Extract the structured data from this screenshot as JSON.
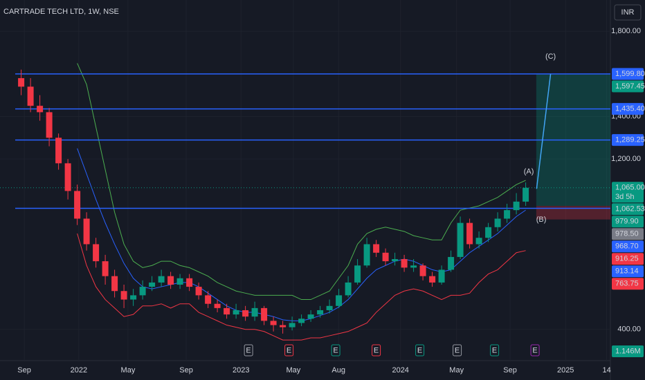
{
  "chart_data": {
    "type": "candlestick",
    "title": "CARTRADE TECH LTD, 1W, NSE",
    "currency": "INR",
    "x": [
      -1,
      2,
      5,
      8,
      11,
      14,
      17,
      20,
      23,
      26,
      29,
      32,
      35,
      38,
      41,
      44,
      47,
      50,
      53,
      56,
      59,
      62,
      65,
      68,
      71,
      74,
      77,
      80,
      83,
      86,
      89,
      92,
      95,
      98,
      101,
      104,
      107,
      110,
      113,
      116,
      119,
      122,
      125,
      128,
      131,
      134,
      137,
      140,
      143,
      146,
      149,
      152,
      155,
      158,
      161
    ],
    "open": [
      1580,
      1540,
      1450,
      1420,
      1300,
      1180,
      1050,
      920,
      800,
      720,
      650,
      580,
      540,
      560,
      600,
      620,
      650,
      610,
      640,
      600,
      560,
      520,
      500,
      470,
      490,
      460,
      500,
      440,
      420,
      410,
      430,
      450,
      470,
      490,
      510,
      560,
      620,
      700,
      800,
      760,
      720,
      730,
      690,
      700,
      650,
      620,
      680,
      740,
      900,
      800,
      830,
      880,
      920,
      960,
      1000
    ],
    "high": [
      1620,
      1580,
      1500,
      1440,
      1320,
      1200,
      1080,
      950,
      830,
      750,
      680,
      610,
      590,
      630,
      650,
      680,
      670,
      660,
      660,
      620,
      580,
      540,
      520,
      520,
      510,
      530,
      510,
      460,
      440,
      460,
      470,
      490,
      510,
      540,
      590,
      650,
      730,
      830,
      820,
      780,
      760,
      750,
      730,
      710,
      670,
      700,
      770,
      930,
      920,
      860,
      900,
      950,
      990,
      1040,
      1090
    ],
    "low": [
      1500,
      1420,
      1380,
      1260,
      1150,
      1010,
      890,
      770,
      690,
      610,
      550,
      500,
      510,
      540,
      580,
      600,
      590,
      590,
      580,
      540,
      500,
      480,
      450,
      450,
      440,
      440,
      420,
      390,
      380,
      395,
      415,
      435,
      455,
      475,
      500,
      550,
      610,
      690,
      740,
      700,
      700,
      670,
      670,
      630,
      600,
      610,
      670,
      730,
      780,
      780,
      810,
      860,
      900,
      940,
      980
    ],
    "close": [
      1540,
      1450,
      1420,
      1300,
      1180,
      1050,
      920,
      800,
      720,
      650,
      580,
      540,
      560,
      600,
      620,
      650,
      610,
      640,
      600,
      560,
      520,
      500,
      470,
      490,
      460,
      500,
      440,
      420,
      410,
      430,
      450,
      470,
      490,
      510,
      560,
      620,
      700,
      800,
      760,
      720,
      730,
      690,
      700,
      650,
      620,
      680,
      740,
      900,
      800,
      830,
      880,
      920,
      960,
      1000,
      1065
    ],
    "bands": [
      {
        "color": "#4caf50",
        "values": [
          null,
          null,
          null,
          null,
          null,
          null,
          1650,
          1550,
          1350,
          1150,
          950,
          800,
          720,
          690,
          700,
          720,
          720,
          700,
          690,
          670,
          650,
          620,
          600,
          580,
          570,
          560,
          560,
          560,
          560,
          560,
          540,
          540,
          560,
          580,
          640,
          700,
          800,
          850,
          870,
          880,
          870,
          860,
          840,
          830,
          820,
          820,
          900,
          960,
          970,
          980,
          1000,
          1020,
          1050,
          1080,
          1100
        ]
      },
      {
        "color": "#2962ff",
        "values": [
          null,
          null,
          null,
          null,
          null,
          null,
          1250,
          1130,
          1010,
          900,
          800,
          710,
          640,
          600,
          590,
          600,
          610,
          620,
          620,
          600,
          570,
          540,
          510,
          490,
          480,
          480,
          470,
          460,
          445,
          440,
          440,
          450,
          465,
          480,
          505,
          540,
          590,
          640,
          680,
          700,
          720,
          730,
          720,
          700,
          680,
          670,
          680,
          720,
          760,
          790,
          820,
          850,
          890,
          930,
          960
        ]
      },
      {
        "color": "#f23645",
        "values": [
          null,
          null,
          null,
          null,
          null,
          null,
          850,
          700,
          600,
          540,
          500,
          460,
          470,
          510,
          510,
          520,
          500,
          520,
          520,
          480,
          460,
          440,
          420,
          410,
          400,
          400,
          390,
          370,
          350,
          350,
          350,
          360,
          360,
          370,
          380,
          390,
          410,
          430,
          480,
          520,
          560,
          580,
          590,
          580,
          560,
          540,
          560,
          560,
          570,
          620,
          660,
          680,
          720,
          760,
          770
        ]
      }
    ],
    "up_color": "#089981",
    "down_color": "#f23645",
    "xlim": [
      -7.8,
      188.2
    ],
    "xticks": [
      {
        "value": 0,
        "label": "Sep"
      },
      {
        "value": 17.5,
        "label": "2022"
      },
      {
        "value": 33.3,
        "label": "May"
      },
      {
        "value": 52,
        "label": "Sep"
      },
      {
        "value": 69.6,
        "label": "2023"
      },
      {
        "value": 86.4,
        "label": "May"
      },
      {
        "value": 100.9,
        "label": "Aug"
      },
      {
        "value": 120.8,
        "label": "2024"
      },
      {
        "value": 138.8,
        "label": "May"
      },
      {
        "value": 156,
        "label": "Sep"
      },
      {
        "value": 173.8,
        "label": "2025"
      },
      {
        "value": 187,
        "label": "14"
      }
    ],
    "ylim": [
      253,
      1947
    ],
    "yticks": [
      {
        "value": 1800,
        "label": "1,800.00"
      },
      {
        "value": 1400,
        "label": "1,400.00"
      },
      {
        "value": 1200,
        "label": "1,200.00"
      },
      {
        "value": 400,
        "label": "400.00"
      }
    ],
    "price_labels": [
      {
        "value": 1599.8,
        "label": "1,599.80",
        "color": "#2962ff",
        "line": true
      },
      {
        "value": 1597.45,
        "label": "1,597.45",
        "color": "#089981"
      },
      {
        "value": 1435.4,
        "label": "1,435.40",
        "color": "#2962ff",
        "line": true
      },
      {
        "value": 1289.25,
        "label": "1,289.25",
        "color": "#2962ff",
        "line": true
      },
      {
        "value": 1065,
        "label": "1,065.00",
        "sub": "3d 5h",
        "color": "#089981",
        "dotted": true
      },
      {
        "value": 1062.53,
        "label": "1,062.53",
        "color": "#089981"
      },
      {
        "value": 979.9,
        "label": "979.90",
        "color": "#089981"
      },
      {
        "value": 978.5,
        "label": "978.50",
        "color": "#787b86"
      },
      {
        "value": 968.7,
        "label": "968.70",
        "color": "#2962ff",
        "line": true
      },
      {
        "value": 916.25,
        "label": "916.25",
        "color": "#f23645"
      },
      {
        "value": 913.14,
        "label": "913.14",
        "color": "#2962ff"
      },
      {
        "value": 763.75,
        "label": "763.75",
        "color": "#f23645"
      }
    ],
    "volume_label": "1.146M",
    "position": {
      "start_x": 164.4,
      "entry": 979.9,
      "target": 1597.45,
      "stop": 916.25
    },
    "projection": {
      "x": [
        164.5,
        169
      ],
      "y": [
        1060,
        1599.8
      ]
    },
    "waves": [
      {
        "label": "(A)",
        "x": 162,
        "y": 1140
      },
      {
        "label": "(B)",
        "x": 166,
        "y": 915
      },
      {
        "label": "(C)",
        "x": 169,
        "y": 1680
      }
    ],
    "earnings": [
      {
        "label": "E",
        "x": 72,
        "color": "#9598a1"
      },
      {
        "label": "E",
        "x": 85,
        "color": "#f23645"
      },
      {
        "label": "E",
        "x": 100,
        "color": "#089981"
      },
      {
        "label": "E",
        "x": 113,
        "color": "#f23645"
      },
      {
        "label": "E",
        "x": 127,
        "color": "#089981"
      },
      {
        "label": "E",
        "x": 139,
        "color": "#9598a1"
      },
      {
        "label": "E",
        "x": 151,
        "color": "#089981"
      },
      {
        "label": "E",
        "x": 164,
        "color": "#9c27b0"
      }
    ]
  }
}
